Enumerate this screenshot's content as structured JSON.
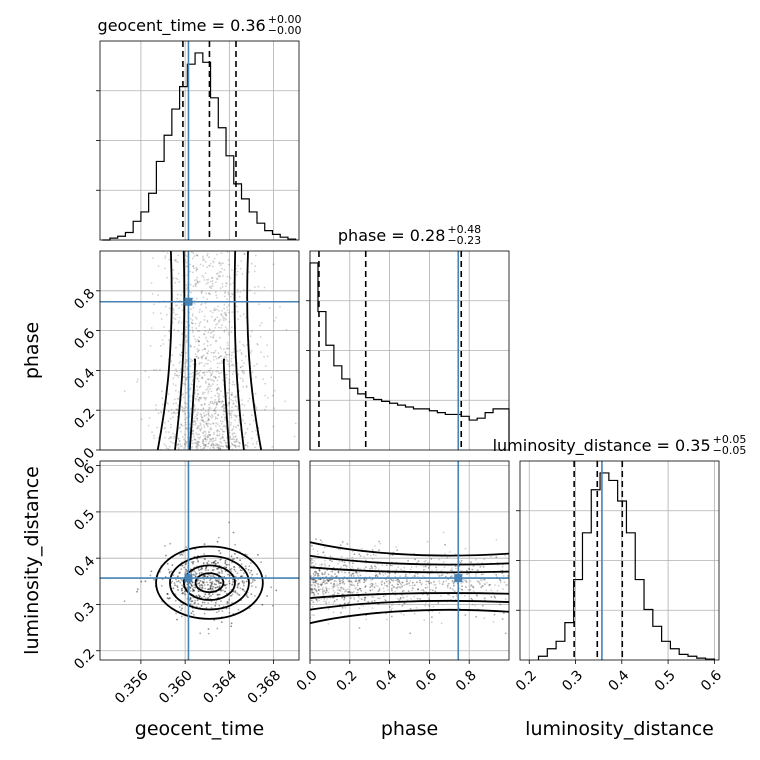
{
  "chart_data": {
    "type": "corner",
    "parameters": [
      "geocent_time",
      "phase",
      "luminosity_distance"
    ],
    "truths": {
      "geocent_time": 0.3603,
      "phase": 0.745,
      "luminosity_distance": 0.357
    },
    "titles": [
      {
        "param": "geocent_time",
        "text": "geocent_time = 0.36",
        "sup": "+0.00",
        "sub": "−0.00"
      },
      {
        "param": "phase",
        "text": "phase = 0.28",
        "sup": "+0.48",
        "sub": "−0.23"
      },
      {
        "param": "luminosity_distance",
        "text": "luminosity_distance = 0.35",
        "sup": "+0.05",
        "sub": "−0.05"
      }
    ],
    "ranges": {
      "geocent_time": [
        0.3523,
        0.3703
      ],
      "phase": [
        0.0,
        1.0
      ],
      "luminosity_distance": [
        0.18,
        0.61
      ]
    },
    "ticks": {
      "geocent_time": [
        0.356,
        0.36,
        0.364,
        0.368
      ],
      "phase": [
        0.0,
        0.2,
        0.4,
        0.6,
        0.8
      ],
      "luminosity_distance": [
        0.2,
        0.3,
        0.4,
        0.5,
        0.6
      ]
    },
    "tick_labels": {
      "geocent_time": [
        "0.356",
        "0.360",
        "0.364",
        "0.368"
      ],
      "phase": [
        "0.0",
        "0.2",
        "0.4",
        "0.6",
        "0.8"
      ],
      "luminosity_distance": [
        "0.2",
        "0.3",
        "0.4",
        "0.5",
        "0.6"
      ]
    },
    "quantiles": {
      "geocent_time": [
        0.3598,
        0.3622,
        0.3646
      ],
      "phase": [
        0.045,
        0.28,
        0.76
      ],
      "luminosity_distance": [
        0.297,
        0.347,
        0.401
      ]
    },
    "histograms": {
      "geocent_time": [
        0,
        0.01,
        0.02,
        0.04,
        0.1,
        0.15,
        0.25,
        0.42,
        0.56,
        0.7,
        0.82,
        0.94,
        1.0,
        0.95,
        0.76,
        0.6,
        0.45,
        0.3,
        0.22,
        0.15,
        0.09,
        0.05,
        0.03,
        0.015,
        0.005
      ],
      "phase": [
        1.0,
        0.74,
        0.56,
        0.45,
        0.38,
        0.33,
        0.3,
        0.28,
        0.27,
        0.26,
        0.25,
        0.24,
        0.23,
        0.22,
        0.22,
        0.21,
        0.2,
        0.19,
        0.19,
        0.18,
        0.16,
        0.17,
        0.2,
        0.22,
        0.22
      ],
      "luminosity_distance": [
        0.02,
        0.06,
        0.1,
        0.2,
        0.43,
        0.68,
        0.91,
        1.0,
        0.96,
        0.85,
        0.68,
        0.43,
        0.27,
        0.18,
        0.1,
        0.06,
        0.03,
        0.02,
        0.01,
        0.005
      ]
    },
    "contours_2d": [
      {
        "x": "geocent_time",
        "y": "phase",
        "kind": "phase-vs-time"
      },
      {
        "x": "geocent_time",
        "y": "luminosity_distance",
        "center": [
          0.3622,
          0.347
        ],
        "sigma": [
          0.0021,
          0.034
        ]
      },
      {
        "x": "phase",
        "y": "luminosity_distance",
        "kind": "distance-vs-phase"
      }
    ]
  }
}
